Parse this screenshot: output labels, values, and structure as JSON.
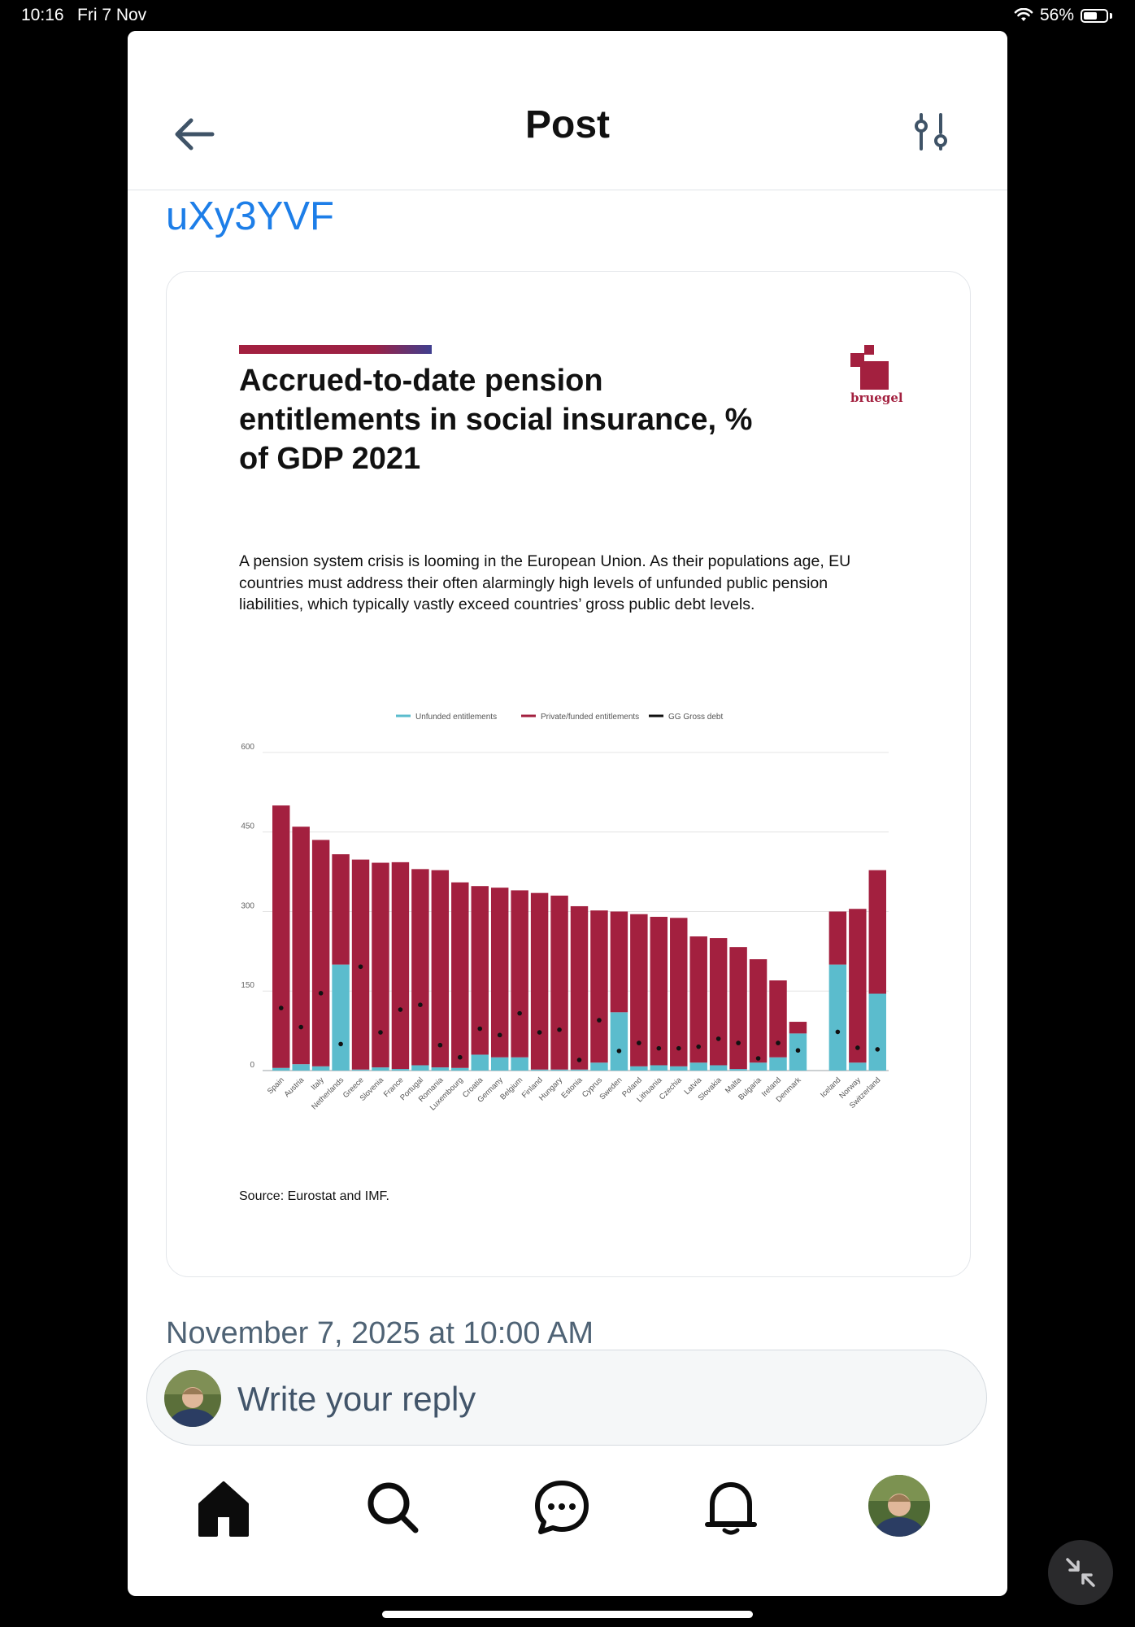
{
  "status_bar": {
    "time": "10:16",
    "date": "Fri 7 Nov",
    "battery": "56%"
  },
  "header": {
    "title": "Post"
  },
  "post": {
    "link_text": "uXy3YVF",
    "timestamp": "November 7, 2025 at 10:00 AM"
  },
  "reply": {
    "placeholder": "Write your reply"
  },
  "icons": {
    "back": "arrow-left-icon",
    "filter": "sliders-icon",
    "home": "home-icon",
    "search": "search-icon",
    "messages": "chat-bubble-icon",
    "notifications": "bell-icon",
    "minimize": "collapse-arrows-icon"
  },
  "colors": {
    "link": "#1d7ee8",
    "unfunded": "#5bbccd",
    "private": "#a3203f",
    "debt": "#111111"
  },
  "chart_data": {
    "type": "bar",
    "title": "Accrued-to-date pension entitlements in social insurance, % of GDP 2021",
    "subtitle": "A pension system crisis is looming in the European Union. As their populations age, EU countries must address their often alarmingly high levels of unfunded public pension liabilities, which typically vastly exceed countries’ gross public debt levels.",
    "source": "Source: Eurostat and IMF.",
    "logo_text": "bruegel",
    "legend": [
      "Unfunded entitlements",
      "Private/funded entitlements",
      "GG Gross debt"
    ],
    "stacked": true,
    "ylim": [
      0,
      600
    ],
    "yticks": [
      0,
      150,
      300,
      450,
      600
    ],
    "categories": [
      "Spain",
      "Austria",
      "Italy",
      "Netherlands",
      "Greece",
      "Slovenia",
      "France",
      "Portugal",
      "Romania",
      "Luxembourg",
      "Croatia",
      "Germany",
      "Belgium",
      "Finland",
      "Hungary",
      "Estonia",
      "Cyprus",
      "Sweden",
      "Poland",
      "Lithuania",
      "Czechia",
      "Latvia",
      "Slovakia",
      "Malta",
      "Bulgaria",
      "Ireland",
      "Denmark",
      "",
      "Iceland",
      "Norway",
      "Switzerland"
    ],
    "series": [
      {
        "name": "Unfunded entitlements",
        "values": [
          5,
          12,
          8,
          200,
          2,
          6,
          3,
          10,
          6,
          5,
          30,
          25,
          25,
          2,
          2,
          2,
          15,
          110,
          8,
          10,
          8,
          15,
          10,
          3,
          15,
          25,
          70,
          0,
          200,
          15,
          145
        ]
      },
      {
        "name": "Private/funded entitlements",
        "values": [
          495,
          448,
          427,
          208,
          396,
          386,
          390,
          370,
          372,
          350,
          318,
          320,
          315,
          333,
          328,
          308,
          287,
          190,
          287,
          280,
          280,
          238,
          240,
          230,
          195,
          145,
          22,
          0,
          100,
          290,
          233
        ]
      },
      {
        "name": "GG Gross debt",
        "values": [
          118,
          82,
          146,
          50,
          196,
          72,
          115,
          124,
          48,
          25,
          79,
          67,
          108,
          72,
          77,
          20,
          95,
          37,
          52,
          42,
          42,
          45,
          60,
          52,
          23,
          52,
          38,
          null,
          73,
          43,
          40
        ]
      }
    ]
  }
}
